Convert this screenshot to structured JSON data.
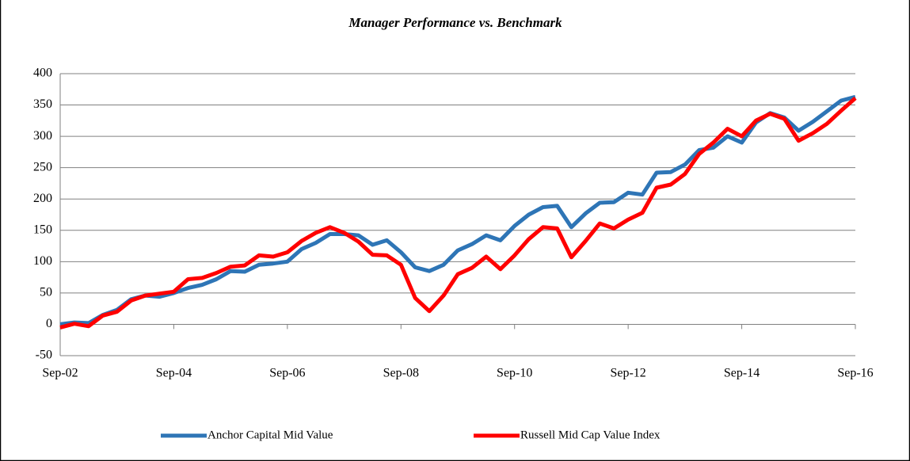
{
  "chart_data": {
    "type": "line",
    "title": "Manager Performance vs. Benchmark",
    "categories": [
      "Sep-02",
      null,
      null,
      null,
      null,
      null,
      null,
      null,
      "Sep-04",
      null,
      null,
      null,
      null,
      null,
      null,
      null,
      "Sep-06",
      null,
      null,
      null,
      null,
      null,
      null,
      null,
      "Sep-08",
      null,
      null,
      null,
      null,
      null,
      null,
      null,
      "Sep-10",
      null,
      null,
      null,
      null,
      null,
      null,
      null,
      "Sep-12",
      null,
      null,
      null,
      null,
      null,
      null,
      null,
      "Sep-14",
      null,
      null,
      null,
      null,
      null,
      null,
      null,
      "Sep-16"
    ],
    "series": [
      {
        "name": "Anchor Capital Mid Value",
        "color": "#2e75b6",
        "values": [
          0,
          3,
          2,
          15,
          23,
          40,
          46,
          44,
          50,
          58,
          63,
          72,
          85,
          84,
          95,
          97,
          100,
          120,
          130,
          144,
          144,
          142,
          127,
          134,
          115,
          91,
          85,
          95,
          118,
          128,
          142,
          134,
          157,
          175,
          187,
          189,
          155,
          177,
          194,
          195,
          210,
          207,
          242,
          243,
          255,
          278,
          282,
          300,
          290,
          322,
          337,
          330,
          309,
          323,
          340,
          357,
          363
        ]
      },
      {
        "name": "Russell Mid Cap Value Index",
        "color": "#ff0000",
        "values": [
          -5,
          1,
          -3,
          14,
          20,
          38,
          46,
          49,
          52,
          72,
          74,
          82,
          92,
          94,
          110,
          108,
          115,
          133,
          146,
          155,
          146,
          132,
          111,
          110,
          95,
          42,
          21,
          46,
          80,
          90,
          108,
          88,
          110,
          136,
          155,
          153,
          107,
          133,
          161,
          153,
          167,
          178,
          218,
          223,
          240,
          272,
          290,
          312,
          300,
          325,
          336,
          328,
          293,
          305,
          320,
          341,
          361
        ]
      }
    ],
    "ylim": [
      -50,
      400
    ],
    "yticks": [
      -50,
      0,
      50,
      100,
      150,
      200,
      250,
      300,
      350,
      400
    ],
    "grid": true,
    "legend": "bottom"
  }
}
